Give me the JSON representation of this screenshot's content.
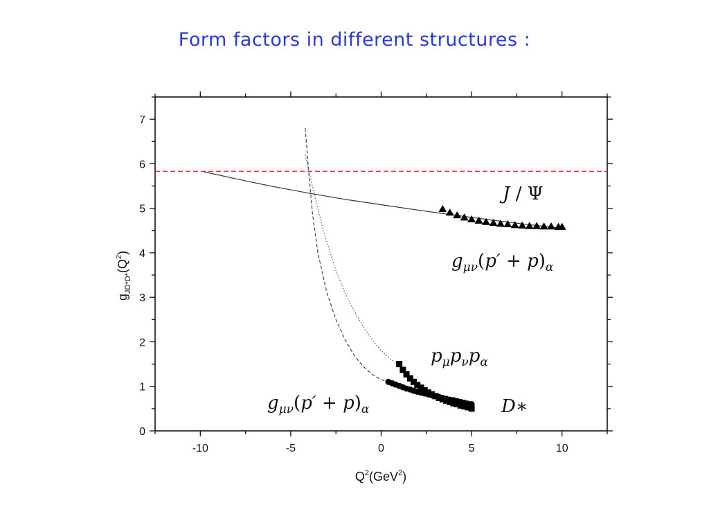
{
  "slide_title": "Form factors in  different  structures :",
  "chart_data": {
    "type": "scatter",
    "xlabel": {
      "base": "Q",
      "sup1": "2",
      "mid": "(GeV",
      "sup2": "2",
      "end": ")"
    },
    "ylabel": {
      "base": "g",
      "sub": "JD*D*",
      "mid": "(Q",
      "sup": "2",
      "end": ")"
    },
    "xlim": [
      -12.5,
      12.5
    ],
    "ylim": [
      0,
      7.5
    ],
    "x_ticks": [
      -10,
      -5,
      0,
      5,
      10
    ],
    "y_ticks": [
      0,
      1,
      2,
      3,
      4,
      5,
      6,
      7
    ],
    "x_tick_labels": [
      "-10",
      "-5",
      "0",
      "5",
      "10"
    ],
    "y_tick_labels": [
      "0",
      "1",
      "2",
      "3",
      "4",
      "5",
      "6",
      "7"
    ],
    "grid": false,
    "reference_line": {
      "y": 5.83,
      "color": "#e03030",
      "style": "dashed"
    },
    "series": [
      {
        "marker": "triangle",
        "x": [
          3.4,
          3.8,
          4.2,
          4.6,
          5.0,
          5.4,
          5.8,
          6.2,
          6.6,
          7.0,
          7.4,
          7.8,
          8.2,
          8.6,
          9.0,
          9.4,
          9.8,
          10.0
        ],
        "y": [
          4.98,
          4.9,
          4.84,
          4.79,
          4.75,
          4.72,
          4.69,
          4.67,
          4.65,
          4.64,
          4.62,
          4.61,
          4.6,
          4.6,
          4.59,
          4.59,
          4.58,
          4.58
        ]
      },
      {
        "marker": "square",
        "x": [
          1.0,
          1.2,
          1.4,
          1.6,
          1.8,
          2.0,
          2.2,
          2.4,
          2.6,
          2.8,
          3.0,
          3.2,
          3.4,
          3.6,
          3.8,
          4.0,
          4.2,
          4.4,
          4.6,
          4.8,
          5.0
        ],
        "y": [
          1.5,
          1.37,
          1.27,
          1.18,
          1.1,
          1.03,
          0.97,
          0.91,
          0.86,
          0.82,
          0.78,
          0.74,
          0.71,
          0.68,
          0.65,
          0.62,
          0.6,
          0.57,
          0.55,
          0.53,
          0.5
        ]
      },
      {
        "marker": "circle",
        "x": [
          0.4,
          0.6,
          0.8,
          1.0,
          1.2,
          1.4,
          1.6,
          1.8,
          2.0,
          2.2,
          2.4,
          2.6,
          2.8,
          3.0,
          3.2,
          3.4,
          3.6,
          3.8,
          4.0,
          4.2,
          4.4,
          4.6,
          4.8,
          5.0
        ],
        "y": [
          1.1,
          1.07,
          1.04,
          1.01,
          0.98,
          0.95,
          0.93,
          0.9,
          0.88,
          0.86,
          0.84,
          0.82,
          0.8,
          0.78,
          0.76,
          0.74,
          0.72,
          0.7,
          0.69,
          0.67,
          0.65,
          0.63,
          0.61,
          0.6
        ]
      }
    ],
    "fits": [
      {
        "style": "solid",
        "x": [
          -9.8,
          -8,
          -6,
          -4,
          -2,
          0,
          2,
          4,
          6,
          8,
          10
        ],
        "y": [
          5.82,
          5.66,
          5.49,
          5.34,
          5.2,
          5.08,
          4.96,
          4.85,
          4.74,
          4.64,
          4.55
        ]
      },
      {
        "style": "dashed",
        "x": [
          -4.2,
          -4.0,
          -3.8,
          -3.5,
          -3.0,
          -2.5,
          -2.0,
          -1.5,
          -1.0,
          -0.5,
          0.0,
          0.4
        ],
        "y": [
          6.8,
          5.8,
          4.9,
          4.0,
          3.1,
          2.5,
          2.05,
          1.7,
          1.45,
          1.27,
          1.15,
          1.1
        ]
      },
      {
        "style": "dotted",
        "x": [
          -4.2,
          -3.8,
          -3.2,
          -2.5,
          -2.0,
          -1.5,
          -1.0,
          -0.5,
          0.0,
          0.5,
          1.0
        ],
        "y": [
          6.2,
          5.5,
          4.5,
          3.6,
          3.1,
          2.7,
          2.35,
          2.05,
          1.8,
          1.62,
          1.48
        ]
      }
    ]
  }
}
